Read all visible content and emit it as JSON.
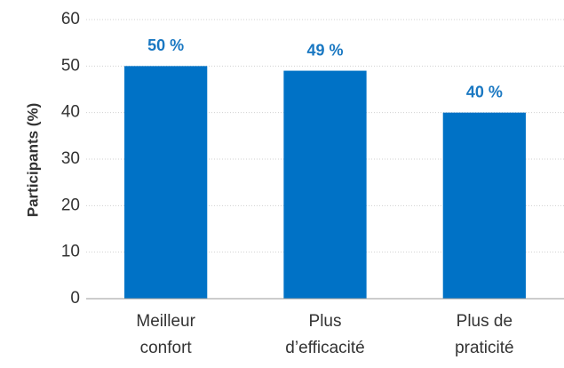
{
  "chart_data": {
    "type": "bar",
    "y_label": "Participants (%)",
    "categories": [
      "Meilleur\nconfort",
      "Plus\nd’efficacité",
      "Plus de\npraticité"
    ],
    "values": [
      50,
      49,
      40
    ],
    "value_labels": [
      "50 %",
      "49 %",
      "40 %"
    ],
    "color": "#0072c6",
    "ylim": [
      0,
      60
    ],
    "yticks": [
      0,
      10,
      20,
      30,
      40,
      50,
      60
    ],
    "grid": true
  }
}
